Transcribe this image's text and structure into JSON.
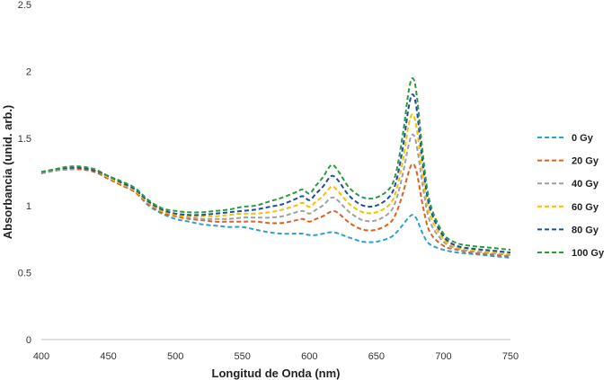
{
  "chart_data": {
    "type": "line",
    "title": "",
    "xlabel": "Longitud de Onda (nm)",
    "ylabel": "Absorbancia (unid. arb.)",
    "xlim": [
      400,
      750
    ],
    "ylim": [
      0,
      2.5
    ],
    "xticks": [
      "400",
      "450",
      "500",
      "550",
      "600",
      "650",
      "700",
      "750"
    ],
    "yticks": [
      "0",
      "0.5",
      "1",
      "1.5",
      "2",
      "2.5"
    ],
    "grid": false,
    "legend_position": "right",
    "line_style": "dashed",
    "x": [
      400,
      410,
      420,
      430,
      440,
      450,
      460,
      470,
      480,
      490,
      500,
      510,
      520,
      530,
      540,
      550,
      560,
      570,
      580,
      590,
      595,
      600,
      605,
      610,
      615,
      618,
      622,
      630,
      640,
      650,
      660,
      665,
      670,
      674,
      677,
      680,
      685,
      690,
      700,
      710,
      720,
      730,
      740,
      750
    ],
    "series": [
      {
        "name": "0 Gy",
        "color": "#2E9FCF",
        "values": [
          1.24,
          1.26,
          1.27,
          1.27,
          1.25,
          1.2,
          1.15,
          1.1,
          1.0,
          0.94,
          0.9,
          0.88,
          0.86,
          0.85,
          0.84,
          0.84,
          0.82,
          0.8,
          0.79,
          0.79,
          0.79,
          0.78,
          0.78,
          0.79,
          0.8,
          0.8,
          0.79,
          0.76,
          0.73,
          0.73,
          0.76,
          0.8,
          0.86,
          0.91,
          0.93,
          0.9,
          0.78,
          0.71,
          0.67,
          0.65,
          0.64,
          0.63,
          0.62,
          0.61
        ]
      },
      {
        "name": "20 Gy",
        "color": "#E06020",
        "values": [
          1.24,
          1.26,
          1.27,
          1.27,
          1.25,
          1.2,
          1.15,
          1.1,
          1.01,
          0.95,
          0.92,
          0.9,
          0.89,
          0.88,
          0.88,
          0.88,
          0.88,
          0.87,
          0.87,
          0.89,
          0.9,
          0.88,
          0.9,
          0.92,
          0.95,
          0.96,
          0.94,
          0.87,
          0.82,
          0.82,
          0.87,
          0.95,
          1.1,
          1.25,
          1.31,
          1.25,
          0.98,
          0.8,
          0.7,
          0.67,
          0.65,
          0.64,
          0.63,
          0.62
        ]
      },
      {
        "name": "40 Gy",
        "color": "#A0A0A0",
        "values": [
          1.24,
          1.26,
          1.27,
          1.28,
          1.26,
          1.21,
          1.16,
          1.11,
          1.02,
          0.96,
          0.93,
          0.91,
          0.9,
          0.9,
          0.9,
          0.91,
          0.91,
          0.91,
          0.92,
          0.95,
          0.96,
          0.94,
          0.97,
          1.0,
          1.05,
          1.06,
          1.03,
          0.95,
          0.89,
          0.89,
          0.95,
          1.05,
          1.25,
          1.45,
          1.53,
          1.45,
          1.12,
          0.88,
          0.73,
          0.68,
          0.66,
          0.65,
          0.64,
          0.63
        ]
      },
      {
        "name": "60 Gy",
        "color": "#F2C200",
        "values": [
          1.25,
          1.27,
          1.28,
          1.28,
          1.26,
          1.21,
          1.16,
          1.11,
          1.02,
          0.96,
          0.93,
          0.92,
          0.92,
          0.92,
          0.93,
          0.94,
          0.94,
          0.95,
          0.97,
          1.0,
          1.02,
          0.99,
          1.03,
          1.07,
          1.13,
          1.14,
          1.1,
          1.01,
          0.95,
          0.95,
          1.01,
          1.12,
          1.35,
          1.6,
          1.68,
          1.58,
          1.2,
          0.93,
          0.75,
          0.69,
          0.67,
          0.66,
          0.65,
          0.64
        ]
      },
      {
        "name": "80 Gy",
        "color": "#1F4E9E",
        "values": [
          1.25,
          1.27,
          1.28,
          1.28,
          1.26,
          1.22,
          1.17,
          1.12,
          1.03,
          0.97,
          0.94,
          0.93,
          0.93,
          0.94,
          0.95,
          0.96,
          0.97,
          0.99,
          1.01,
          1.05,
          1.07,
          1.04,
          1.09,
          1.14,
          1.21,
          1.22,
          1.18,
          1.07,
          1.0,
          1.0,
          1.07,
          1.19,
          1.45,
          1.73,
          1.83,
          1.72,
          1.28,
          0.98,
          0.77,
          0.7,
          0.68,
          0.67,
          0.66,
          0.65
        ]
      },
      {
        "name": "100 Gy",
        "color": "#2E9A3E",
        "values": [
          1.25,
          1.27,
          1.29,
          1.29,
          1.27,
          1.22,
          1.18,
          1.13,
          1.04,
          0.98,
          0.96,
          0.95,
          0.95,
          0.96,
          0.97,
          0.99,
          1.0,
          1.03,
          1.06,
          1.1,
          1.12,
          1.09,
          1.15,
          1.21,
          1.29,
          1.3,
          1.25,
          1.13,
          1.06,
          1.06,
          1.13,
          1.26,
          1.55,
          1.85,
          1.95,
          1.83,
          1.35,
          1.02,
          0.79,
          0.72,
          0.7,
          0.69,
          0.68,
          0.67
        ]
      }
    ]
  }
}
